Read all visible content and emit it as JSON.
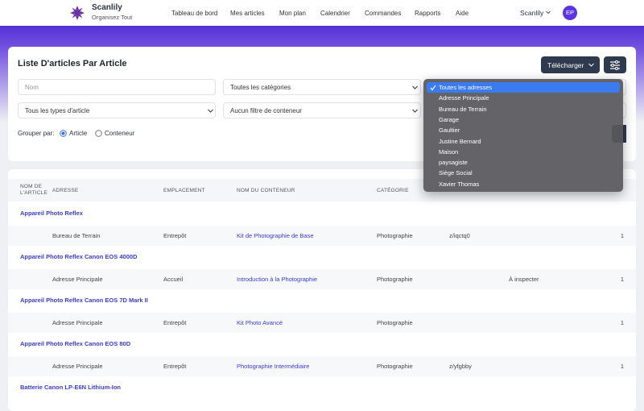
{
  "header": {
    "brand": "Scanlily",
    "tagline": "Organisez Tout",
    "nav": [
      "Tableau de bord",
      "Mes articles",
      "Mon plan",
      "Calendrier",
      "Commandes",
      "Rapports",
      "Aide"
    ],
    "user": "Scanlily",
    "avatar": "EP"
  },
  "toolbar": {
    "title": "Liste D'articles Par Article",
    "download": "Télécharger",
    "filters": {
      "name_placeholder": "Nom",
      "category": "Toutes les catégories",
      "item_type": "Tous les types d'article",
      "container": "Aucun filtre de conteneur"
    },
    "group_by": {
      "label": "Grouper par:",
      "options": [
        "Article",
        "Conteneur"
      ]
    }
  },
  "address_dropdown": {
    "options": [
      "Toutes les adresses",
      "Adresse Principale",
      "Bureau de Terrain",
      "Garage",
      "Gaultier",
      "Justine Bernard",
      "Maison",
      "paysagiste",
      "Siège Social",
      "Xavier Thomas"
    ]
  },
  "table": {
    "columns": [
      "NOM DE L'ARTICLE",
      "ADRESSE",
      "EMPLACEMENT",
      "NOM DU CONTENEUR",
      "CATÉGORIE"
    ],
    "groups": [
      {
        "name": "Appareil Photo Reflex",
        "row": {
          "address": "Bureau de Terrain",
          "location": "Entrepôt",
          "container": "Kit de Photographie de Base",
          "category": "Photographie",
          "code": "z/iqctq0",
          "qty": 1
        }
      },
      {
        "name": "Appareil Photo Reflex Canon EOS 4000D",
        "row": {
          "address": "Adresse Principale",
          "location": "Accueil",
          "container": "Introduction à la Photographie",
          "category": "Photographie",
          "status": "À inspecter",
          "qty": 1
        }
      },
      {
        "name": "Appareil Photo Reflex Canon EOS 7D Mark II",
        "row": {
          "address": "Adresse Principale",
          "location": "Entrepôt",
          "container": "Kit Photo Avancé",
          "category": "Photographie",
          "qty": 1
        }
      },
      {
        "name": "Appareil Photo Reflex Canon EOS 80D",
        "row": {
          "address": "Adresse Principale",
          "location": "Entrepôt",
          "container": "Photographie Intermédiaire",
          "category": "Photographie",
          "code": "z/yfgbby",
          "qty": 1
        }
      },
      {
        "name": "Batterie Canon LP-E6N Lithium-Ion"
      }
    ]
  }
}
